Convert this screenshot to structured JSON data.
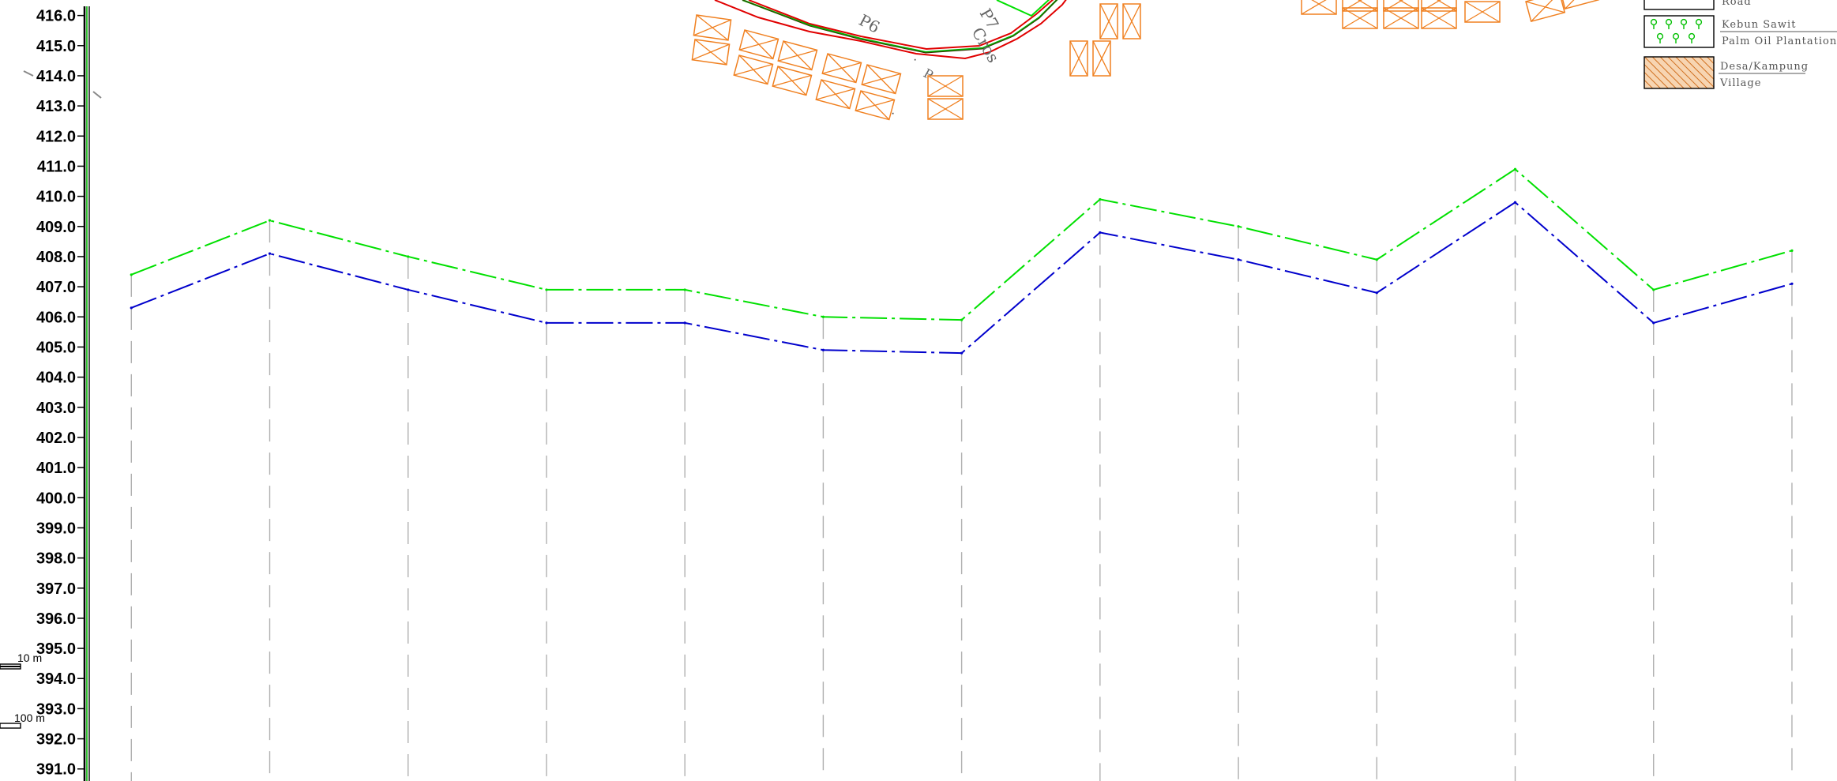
{
  "chart_data": {
    "type": "line",
    "title": "",
    "xlabel": "",
    "ylabel": "",
    "y_ticks": [
      "416.0",
      "415.0",
      "414.0",
      "413.0",
      "412.0",
      "411.0",
      "410.0",
      "409.0",
      "408.0",
      "407.0",
      "406.0",
      "405.0",
      "404.0",
      "403.0",
      "402.0",
      "401.0",
      "400.0",
      "399.0",
      "398.0",
      "397.0",
      "396.0",
      "395.0",
      "394.0",
      "393.0",
      "392.0",
      "391.0"
    ],
    "ylim": [
      390.6,
      416.2
    ],
    "x": [
      0,
      1,
      2,
      3,
      4,
      5,
      6,
      7,
      8,
      9,
      10,
      11,
      12
    ],
    "xlim": [
      -0.15,
      12.2
    ],
    "series": [
      {
        "color": "#00e000",
        "values": [
          407.4,
          409.2,
          408.0,
          406.9,
          406.9,
          406.0,
          405.9,
          409.9,
          409.0,
          407.9,
          410.9,
          406.9,
          408.2
        ]
      },
      {
        "color": "#0000cc",
        "values": [
          406.3,
          408.1,
          406.9,
          405.8,
          405.8,
          404.9,
          404.8,
          408.8,
          407.9,
          406.8,
          409.8,
          405.8,
          407.1
        ]
      }
    ],
    "grid": true
  },
  "scale_bars": [
    "10 m",
    "100 m"
  ],
  "plan_labels": [
    "P6",
    "P7",
    "Cros"
  ],
  "legend": [
    {
      "label": "Road"
    },
    {
      "label": "Kebun Sawit",
      "label_en": "Palm Oil Plantation",
      "icon": "palm-tree-icon",
      "color": "#00c000"
    },
    {
      "label": "Desa/Kampung",
      "label_en": "Village",
      "icon": "hatch-icon",
      "color": "#d07020"
    }
  ],
  "colors": {
    "road": "#e00000",
    "building": "#f08020",
    "centerline": "#00c000"
  }
}
